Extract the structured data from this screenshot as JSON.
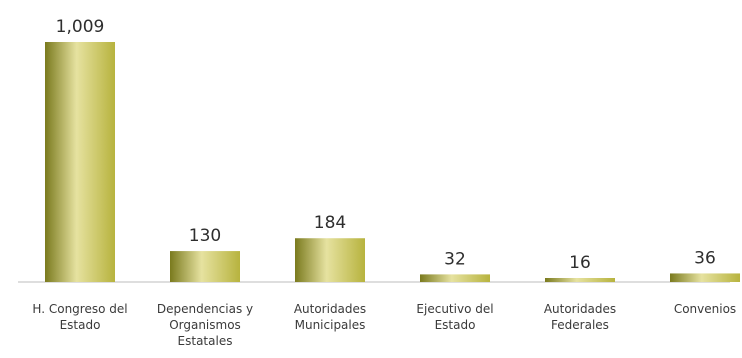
{
  "chart_data": {
    "type": "bar",
    "categories": [
      [
        "H. Congreso del",
        "Estado"
      ],
      [
        "Dependencias y",
        "Organismos",
        "Estatales"
      ],
      [
        "Autoridades",
        "Municipales"
      ],
      [
        "Ejecutivo del",
        "Estado"
      ],
      [
        "Autoridades",
        "Federales"
      ],
      [
        "Convenios"
      ]
    ],
    "values": [
      1009,
      130,
      184,
      32,
      16,
      36
    ],
    "value_labels": [
      "1,009",
      "130",
      "184",
      "32",
      "16",
      "36"
    ],
    "ylim": [
      0,
      1009
    ],
    "grid": false,
    "legend": "none",
    "colors": {
      "bar_dark": "#7a7a1e",
      "bar_mid": "#b7b33e",
      "bar_light": "#e6e2a0",
      "baseline": "#bdbdbd"
    }
  }
}
